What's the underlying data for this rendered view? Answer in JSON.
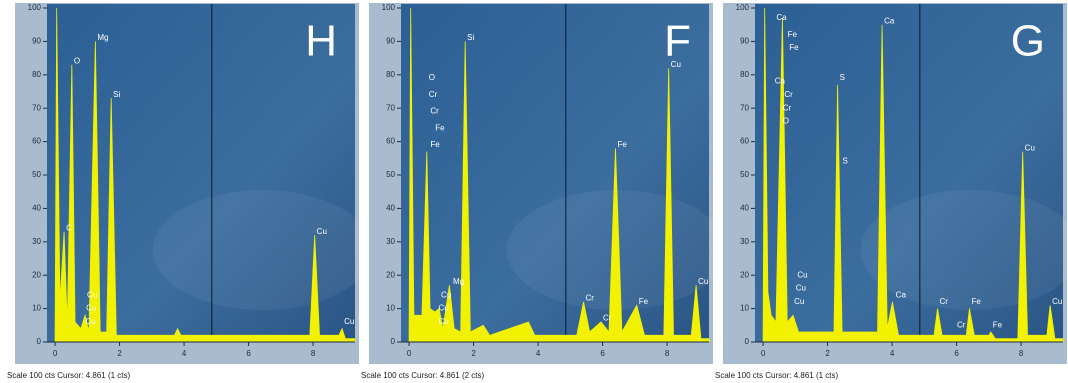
{
  "chart_data": [
    {
      "type": "area",
      "panel_label": "H",
      "footer": "Scale 100 cts Cursor: 4.861 (1 cts)",
      "color": "#f2f200",
      "xlim": [
        -0.25,
        9.3
      ],
      "ylim": [
        0,
        100
      ],
      "xticks": [
        0,
        2,
        4,
        6,
        8
      ],
      "yticks": [
        0,
        10,
        20,
        30,
        40,
        50,
        60,
        70,
        80,
        90,
        100
      ],
      "cursor_x": 4.861,
      "x": [
        0,
        0.05,
        0.15,
        0.28,
        0.38,
        0.52,
        0.62,
        0.8,
        0.93,
        1.05,
        1.25,
        1.4,
        1.6,
        1.74,
        1.9,
        2.5,
        3.7,
        3.8,
        3.9,
        5.0,
        7.9,
        8.05,
        8.2,
        8.8,
        8.9,
        9.0,
        9.3
      ],
      "values": [
        0,
        100,
        12,
        33,
        5,
        83,
        6,
        4,
        8,
        3,
        90,
        3,
        3,
        73,
        2,
        2,
        2,
        4,
        2,
        2,
        2,
        32,
        2,
        2,
        4,
        1,
        1
      ],
      "annotations": [
        {
          "text": "C",
          "x": 0.28,
          "y": 34
        },
        {
          "text": "O",
          "x": 0.52,
          "y": 84
        },
        {
          "text": "Mg",
          "x": 1.25,
          "y": 91
        },
        {
          "text": "Si",
          "x": 1.74,
          "y": 74
        },
        {
          "text": "Cu",
          "x": 0.93,
          "y": 14
        },
        {
          "text": "Cu",
          "x": 0.9,
          "y": 10
        },
        {
          "text": "Cu",
          "x": 0.88,
          "y": 6
        },
        {
          "text": "Cu",
          "x": 8.05,
          "y": 33
        },
        {
          "text": "Cu",
          "x": 8.9,
          "y": 6
        }
      ]
    },
    {
      "type": "area",
      "panel_label": "F",
      "footer": "Scale 100 cts Cursor: 4.861 (2 cts)",
      "color": "#f2f200",
      "xlim": [
        -0.25,
        9.3
      ],
      "ylim": [
        0,
        100
      ],
      "xticks": [
        0,
        2,
        4,
        6,
        8
      ],
      "yticks": [
        0,
        10,
        20,
        30,
        40,
        50,
        60,
        70,
        80,
        90,
        100
      ],
      "cursor_x": 4.861,
      "x": [
        0,
        0.05,
        0.15,
        0.4,
        0.55,
        0.65,
        0.8,
        0.93,
        1.05,
        1.25,
        1.4,
        1.6,
        1.74,
        1.9,
        2.3,
        2.5,
        3.7,
        3.9,
        5.2,
        5.41,
        5.6,
        5.95,
        6.2,
        6.4,
        6.6,
        7.06,
        7.3,
        7.9,
        8.05,
        8.2,
        8.75,
        8.9,
        9.05,
        9.3
      ],
      "values": [
        0,
        100,
        8,
        8,
        57,
        10,
        9,
        10,
        4,
        17,
        4,
        3,
        90,
        3,
        5,
        2,
        6,
        2,
        2,
        12,
        3,
        6,
        3,
        58,
        3,
        11,
        2,
        2,
        82,
        2,
        2,
        17,
        1,
        1
      ],
      "annotations": [
        {
          "text": "O",
          "x": 0.55,
          "y": 79
        },
        {
          "text": "Cr",
          "x": 0.55,
          "y": 74
        },
        {
          "text": "Cr",
          "x": 0.6,
          "y": 69
        },
        {
          "text": "Fe",
          "x": 0.75,
          "y": 64
        },
        {
          "text": "Fe",
          "x": 0.6,
          "y": 59
        },
        {
          "text": "Si",
          "x": 1.74,
          "y": 91
        },
        {
          "text": "Mg",
          "x": 1.3,
          "y": 18
        },
        {
          "text": "Cu",
          "x": 0.93,
          "y": 14
        },
        {
          "text": "Cu",
          "x": 0.85,
          "y": 10
        },
        {
          "text": "Cu",
          "x": 0.85,
          "y": 6
        },
        {
          "text": "Cr",
          "x": 5.41,
          "y": 13
        },
        {
          "text": "Cr",
          "x": 5.95,
          "y": 7
        },
        {
          "text": "Fe",
          "x": 6.4,
          "y": 59
        },
        {
          "text": "Fe",
          "x": 7.06,
          "y": 12
        },
        {
          "text": "Cu",
          "x": 8.05,
          "y": 83
        },
        {
          "text": "Cu",
          "x": 8.9,
          "y": 18
        }
      ]
    },
    {
      "type": "area",
      "panel_label": "G",
      "footer": "Scale 100 cts Cursor: 4.861 (1 cts)",
      "color": "#f2f200",
      "xlim": [
        -0.25,
        9.3
      ],
      "ylim": [
        0,
        100
      ],
      "xticks": [
        0,
        2,
        4,
        6,
        8
      ],
      "yticks": [
        0,
        10,
        20,
        30,
        40,
        50,
        60,
        70,
        80,
        90,
        100
      ],
      "cursor_x": 4.861,
      "x": [
        0,
        0.05,
        0.15,
        0.25,
        0.4,
        0.6,
        0.75,
        0.93,
        1.1,
        1.5,
        2.2,
        2.31,
        2.45,
        3.55,
        3.69,
        3.85,
        4.01,
        4.2,
        5.3,
        5.41,
        5.55,
        6.3,
        6.4,
        6.55,
        7.0,
        7.06,
        7.2,
        7.9,
        8.05,
        8.2,
        8.8,
        8.9,
        9.05,
        9.3
      ],
      "values": [
        0,
        100,
        15,
        8,
        6,
        97,
        6,
        8,
        3,
        3,
        3,
        77,
        3,
        3,
        95,
        4,
        12,
        2,
        2,
        10,
        2,
        2,
        10,
        2,
        2,
        3,
        1,
        1,
        57,
        2,
        2,
        11,
        1,
        1
      ],
      "annotations": [
        {
          "text": "Ca",
          "x": 0.35,
          "y": 97
        },
        {
          "text": "Fe",
          "x": 0.7,
          "y": 92
        },
        {
          "text": "Fe",
          "x": 0.75,
          "y": 88
        },
        {
          "text": "Ca",
          "x": 0.3,
          "y": 78
        },
        {
          "text": "Cr",
          "x": 0.6,
          "y": 74
        },
        {
          "text": "Cr",
          "x": 0.55,
          "y": 70
        },
        {
          "text": "O",
          "x": 0.55,
          "y": 66
        },
        {
          "text": "S",
          "x": 2.31,
          "y": 79
        },
        {
          "text": "S",
          "x": 2.4,
          "y": 54
        },
        {
          "text": "Ca",
          "x": 3.69,
          "y": 96
        },
        {
          "text": "Ca",
          "x": 4.05,
          "y": 14
        },
        {
          "text": "Cr",
          "x": 5.41,
          "y": 12
        },
        {
          "text": "Cr",
          "x": 5.95,
          "y": 5
        },
        {
          "text": "Fe",
          "x": 6.4,
          "y": 12
        },
        {
          "text": "Fe",
          "x": 7.06,
          "y": 5
        },
        {
          "text": "Cu",
          "x": 8.05,
          "y": 58
        },
        {
          "text": "Cu",
          "x": 8.9,
          "y": 12
        },
        {
          "text": "Cu",
          "x": 1.0,
          "y": 20
        },
        {
          "text": "Cu",
          "x": 0.95,
          "y": 16
        },
        {
          "text": "Cu",
          "x": 0.9,
          "y": 12
        }
      ]
    }
  ]
}
